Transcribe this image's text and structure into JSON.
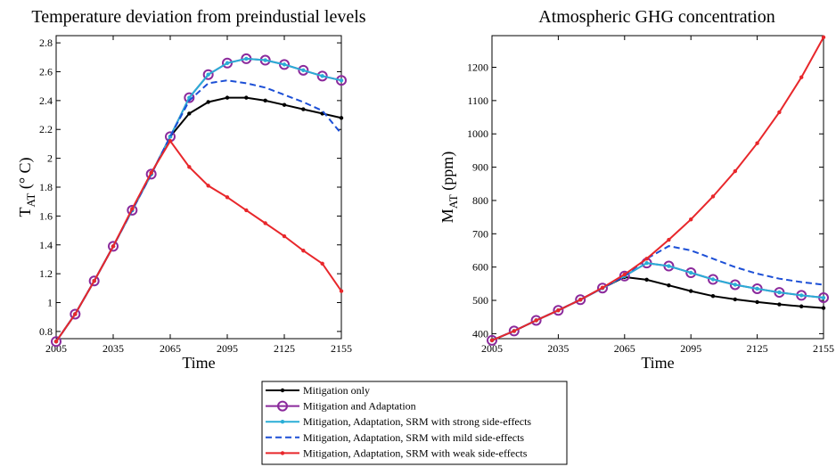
{
  "legend": {
    "placement": "bottom-center",
    "entries": [
      "Mitigation only",
      "Mitigation and Adaptation",
      "Mitigation, Adaptation, SRM with strong side-effects",
      "Mitigation, Adaptation, SRM with mild side-effects",
      "Mitigation, Adaptation, SRM with weak side-effects"
    ]
  },
  "styles": [
    {
      "color": "#000000",
      "width": 2,
      "dash": "",
      "marker": "dot"
    },
    {
      "color": "#8b2a9c",
      "width": 2,
      "dash": "",
      "marker": "circle"
    },
    {
      "color": "#2aaed6",
      "width": 2,
      "dash": "",
      "marker": "dot"
    },
    {
      "color": "#1c4fd6",
      "width": 2,
      "dash": "7,4",
      "marker": "none"
    },
    {
      "color": "#e8272b",
      "width": 2,
      "dash": "",
      "marker": "dot"
    }
  ],
  "chart_data": [
    {
      "type": "line",
      "title": "Temperature deviation from preindustial levels",
      "xlabel": "Time",
      "ylabel_main": "T",
      "ylabel_sub": "AT",
      "ylabel_unit": " (° C)",
      "xlim": [
        2005,
        2155
      ],
      "ylim": [
        0.75,
        2.85
      ],
      "xticks": [
        2005,
        2035,
        2065,
        2095,
        2125,
        2155
      ],
      "yticks": [
        0.8,
        1,
        1.2,
        1.4,
        1.6,
        1.8,
        2,
        2.2,
        2.4,
        2.6,
        2.8
      ],
      "ytick_labels": [
        "0.8",
        "1",
        "1.2",
        "1.4",
        "1.6",
        "1.8",
        "2",
        "2.2",
        "2.4",
        "2.6",
        "2.8"
      ],
      "x": [
        2005,
        2015,
        2025,
        2035,
        2045,
        2055,
        2065,
        2075,
        2085,
        2095,
        2105,
        2115,
        2125,
        2135,
        2145,
        2155
      ],
      "series": [
        {
          "values": [
            0.73,
            0.92,
            1.15,
            1.39,
            1.64,
            1.89,
            2.15,
            2.31,
            2.39,
            2.42,
            2.42,
            2.4,
            2.37,
            2.34,
            2.31,
            2.28
          ]
        },
        {
          "values": [
            0.73,
            0.92,
            1.15,
            1.39,
            1.64,
            1.89,
            2.15,
            2.42,
            2.58,
            2.66,
            2.69,
            2.68,
            2.65,
            2.61,
            2.57,
            2.54
          ]
        },
        {
          "values": [
            0.73,
            0.92,
            1.15,
            1.39,
            1.64,
            1.89,
            2.15,
            2.42,
            2.58,
            2.66,
            2.69,
            2.68,
            2.65,
            2.61,
            2.57,
            2.54
          ]
        },
        {
          "values": [
            0.73,
            0.92,
            1.15,
            1.39,
            1.64,
            1.89,
            2.15,
            2.4,
            2.52,
            2.54,
            2.52,
            2.49,
            2.44,
            2.39,
            2.33,
            2.17
          ]
        },
        {
          "values": [
            0.73,
            0.92,
            1.15,
            1.39,
            1.65,
            1.9,
            2.12,
            1.94,
            1.81,
            1.73,
            1.64,
            1.55,
            1.46,
            1.36,
            1.27,
            1.08
          ]
        }
      ]
    },
    {
      "type": "line",
      "title": "Atmospheric GHG concentration",
      "xlabel": "Time",
      "ylabel_main": "M",
      "ylabel_sub": "AT",
      "ylabel_unit": " (ppm)",
      "xlim": [
        2005,
        2155
      ],
      "ylim": [
        385,
        1295
      ],
      "xticks": [
        2005,
        2035,
        2065,
        2095,
        2125,
        2155
      ],
      "yticks": [
        400,
        500,
        600,
        700,
        800,
        900,
        1000,
        1100,
        1200
      ],
      "ytick_labels": [
        "400",
        "500",
        "600",
        "700",
        "800",
        "900",
        "1000",
        "1100",
        "1200"
      ],
      "x": [
        2005,
        2015,
        2025,
        2035,
        2045,
        2055,
        2065,
        2075,
        2085,
        2095,
        2105,
        2115,
        2125,
        2135,
        2145,
        2155
      ],
      "series": [
        {
          "values": [
            380,
            408,
            440,
            470,
            502,
            537,
            570,
            562,
            545,
            528,
            513,
            503,
            495,
            488,
            482,
            477
          ]
        },
        {
          "values": [
            380,
            408,
            440,
            470,
            502,
            537,
            573,
            612,
            603,
            583,
            563,
            547,
            535,
            524,
            515,
            508
          ]
        },
        {
          "values": [
            380,
            408,
            440,
            470,
            502,
            537,
            573,
            612,
            603,
            583,
            563,
            547,
            535,
            524,
            515,
            508
          ]
        },
        {
          "values": [
            380,
            408,
            440,
            470,
            502,
            537,
            573,
            625,
            663,
            650,
            625,
            600,
            580,
            565,
            555,
            547
          ]
        },
        {
          "values": [
            380,
            408,
            440,
            470,
            502,
            538,
            578,
            625,
            682,
            743,
            812,
            888,
            972,
            1065,
            1170,
            1290
          ]
        }
      ]
    }
  ]
}
